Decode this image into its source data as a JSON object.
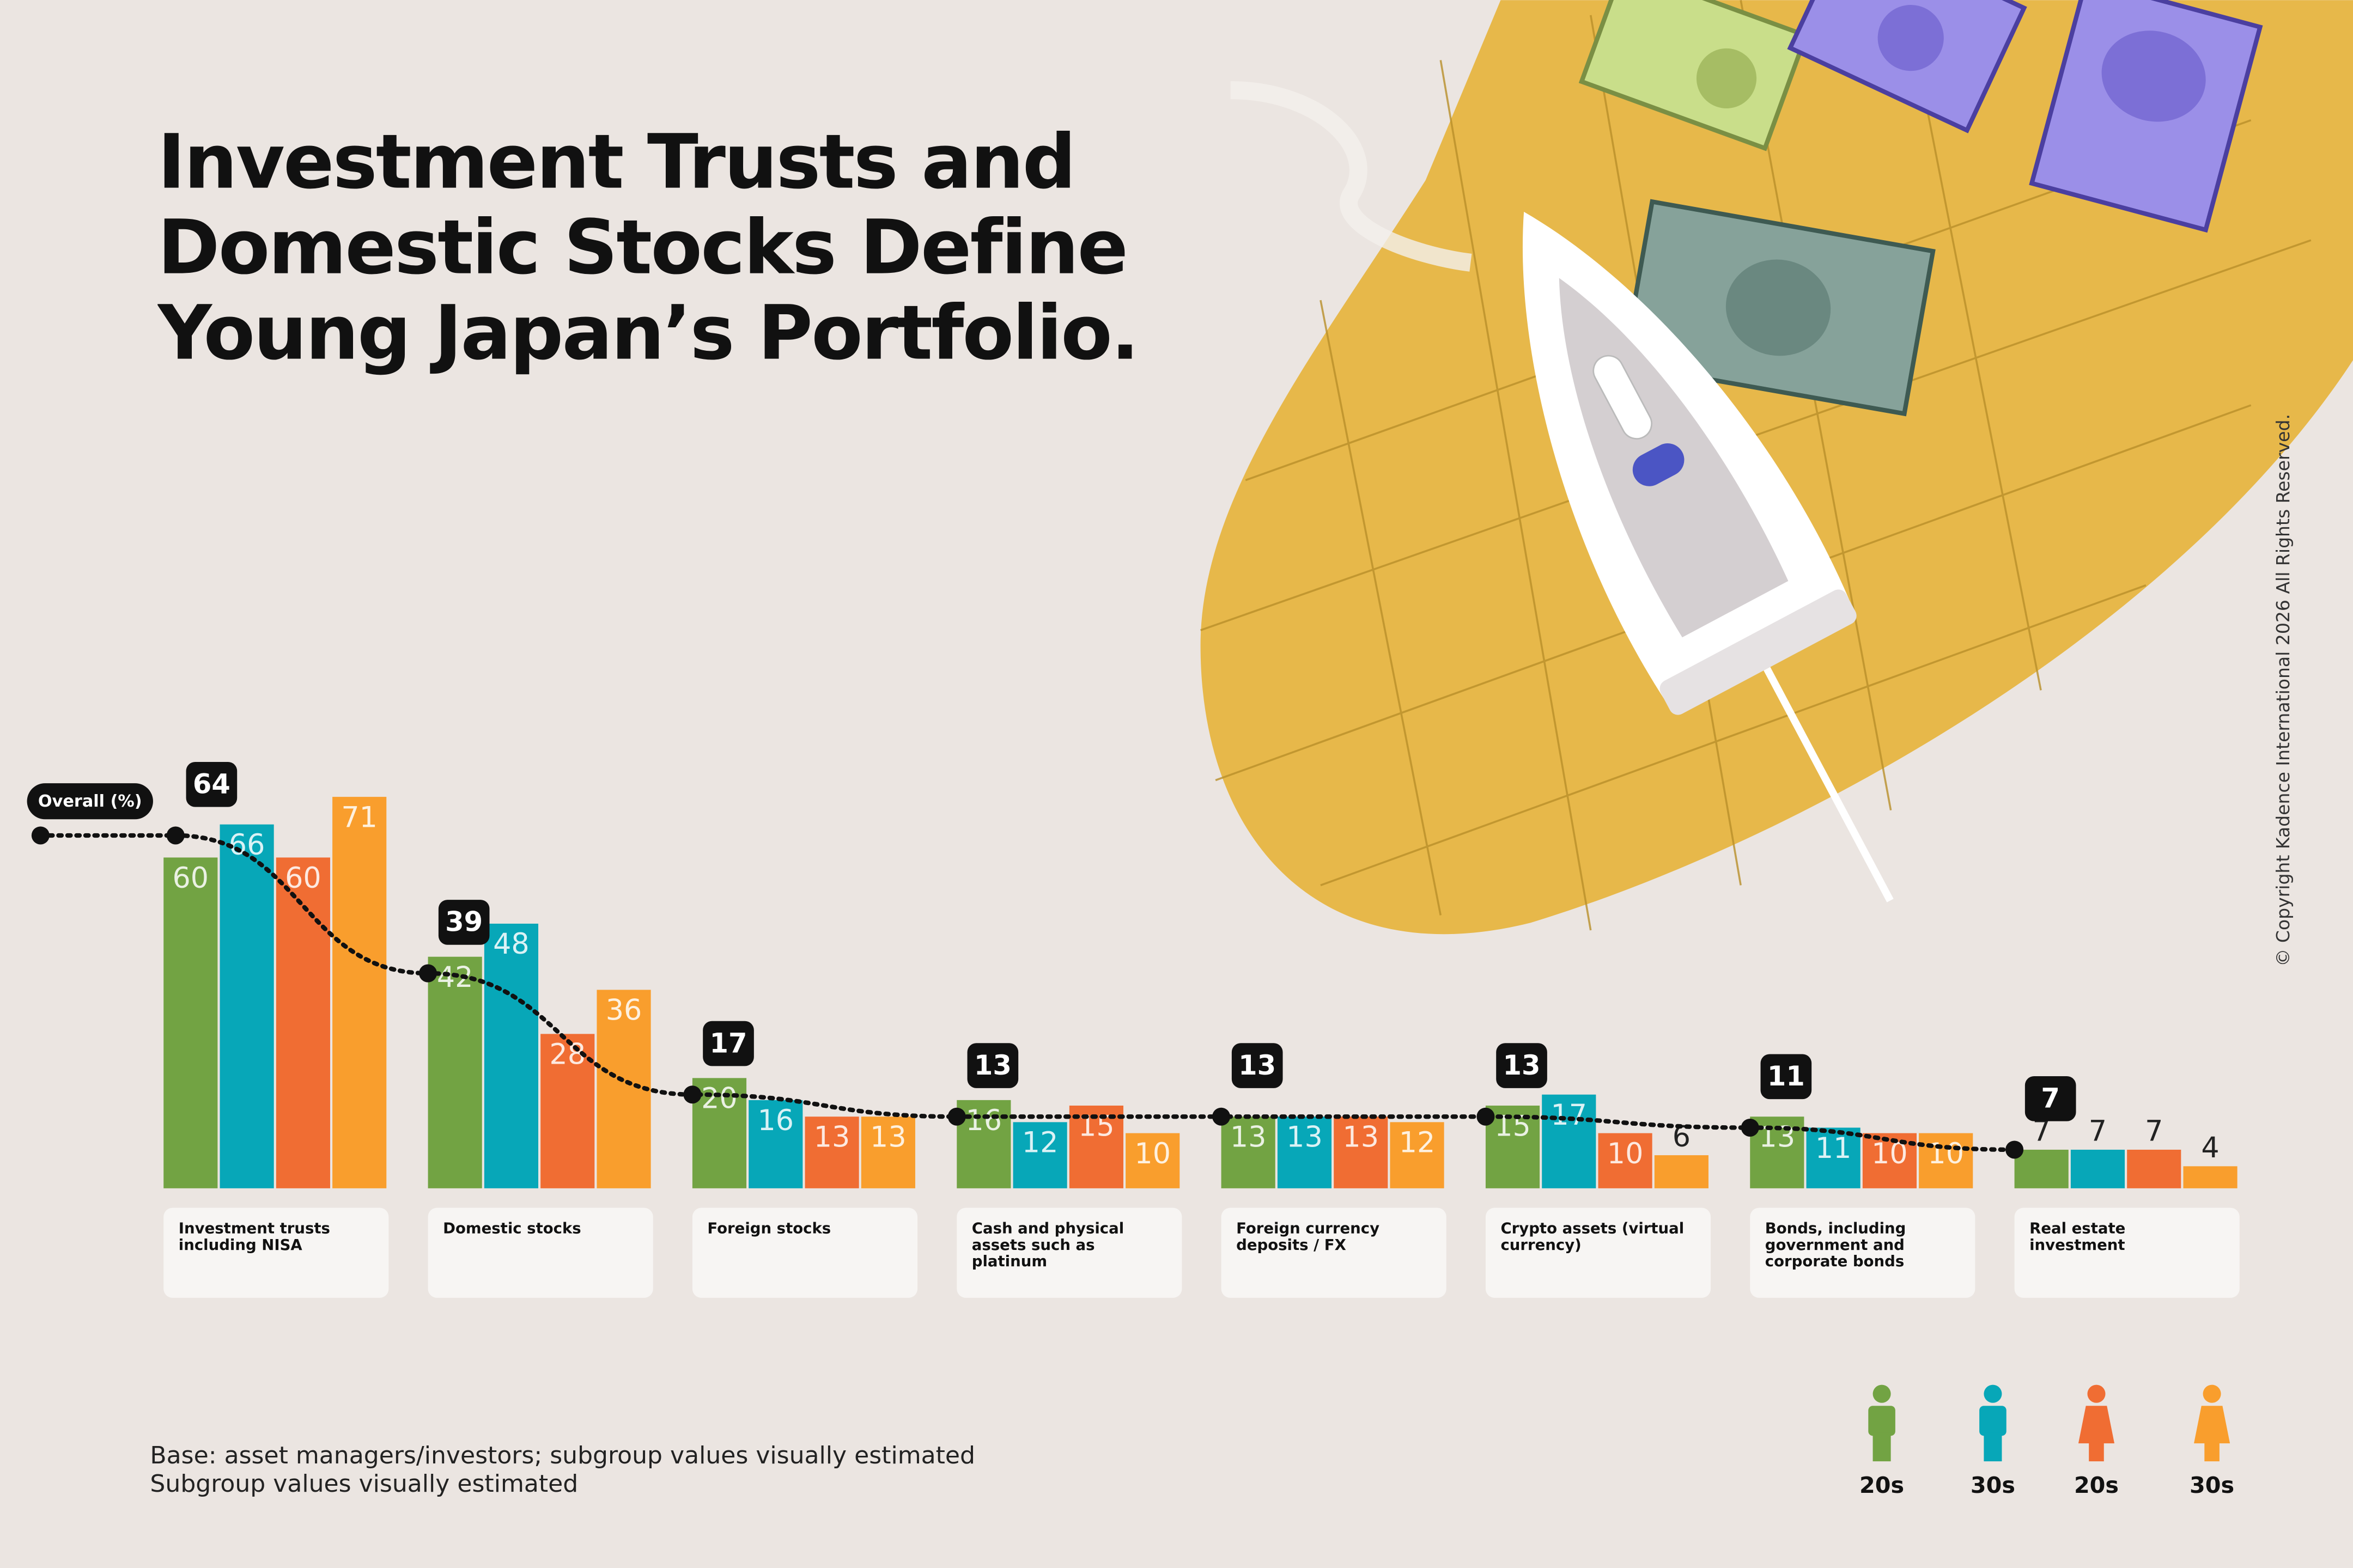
{
  "chart_data": {
    "type": "bar",
    "title": "Investment Trusts and Domestic Stocks Define Young Japan’s Portfolio.",
    "categories": [
      "Investment trusts including NISA",
      "Domestic stocks",
      "Foreign stocks",
      "Cash and physical assets such as platinum",
      "Foreign currency deposits / FX",
      "Crypto assets (virtual currency)",
      "Bonds, including government and corporate bonds",
      "Real estate investment"
    ],
    "series": [
      {
        "name": "20s",
        "group": "male",
        "color": "#72a343",
        "values": [
          60,
          42,
          20,
          16,
          13,
          15,
          13,
          7
        ]
      },
      {
        "name": "30s",
        "group": "male",
        "color": "#07a7b8",
        "values": [
          66,
          48,
          16,
          12,
          13,
          17,
          11,
          7
        ]
      },
      {
        "name": "20s",
        "group": "female",
        "color": "#f06d33",
        "values": [
          60,
          28,
          13,
          15,
          13,
          10,
          10,
          7
        ]
      },
      {
        "name": "30s",
        "group": "female",
        "color": "#f99e2d",
        "values": [
          71,
          36,
          13,
          10,
          12,
          6,
          10,
          4
        ]
      }
    ],
    "line": {
      "name": "Overall (%)",
      "color": "#111111",
      "values": [
        64,
        39,
        17,
        13,
        13,
        13,
        11,
        7
      ]
    },
    "notes": [
      "Base: asset managers/investors; subgroup values visually estimated",
      "Subgroup values visually estimated"
    ],
    "copyright": "© Copyright Kadence International 2026 All Rights Reserved."
  }
}
